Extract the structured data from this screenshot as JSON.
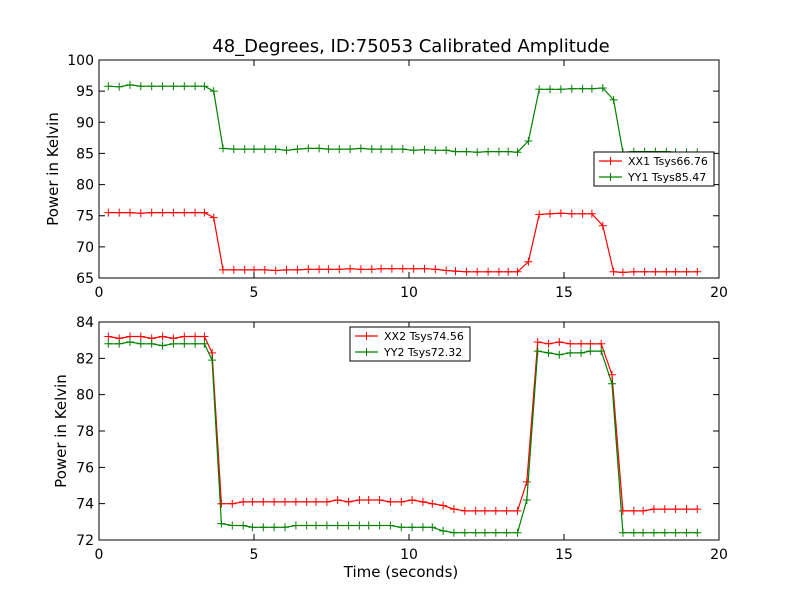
{
  "chart_data": [
    {
      "type": "line",
      "title": "48_Degrees, ID:75053 Calibrated Amplitude",
      "xlabel": "",
      "ylabel": "Power in Kelvin",
      "xlim": [
        0,
        20
      ],
      "ylim": [
        65,
        100
      ],
      "xticks": [
        0,
        5,
        10,
        15,
        20
      ],
      "yticks": [
        65,
        70,
        75,
        80,
        85,
        90,
        95,
        100
      ],
      "legend_position": "right",
      "grid": false,
      "series": [
        {
          "name": "XX1 Tsys66.76",
          "color": "#ff0000",
          "x": [
            0.3,
            0.65,
            1.0,
            1.35,
            1.7,
            2.05,
            2.4,
            2.75,
            3.1,
            3.4,
            3.7,
            4.0,
            4.35,
            4.7,
            5.0,
            5.35,
            5.7,
            6.05,
            6.4,
            6.75,
            7.1,
            7.4,
            7.75,
            8.1,
            8.45,
            8.8,
            9.1,
            9.45,
            9.8,
            10.15,
            10.5,
            10.85,
            11.2,
            11.5,
            11.85,
            12.2,
            12.55,
            12.9,
            13.2,
            13.5,
            13.85,
            14.2,
            14.55,
            14.9,
            15.25,
            15.6,
            15.9,
            16.25,
            16.6,
            16.9,
            17.25,
            17.6,
            17.95,
            18.3,
            18.6,
            18.95,
            19.3
          ],
          "y": [
            75.5,
            75.5,
            75.5,
            75.4,
            75.5,
            75.5,
            75.5,
            75.5,
            75.5,
            75.5,
            74.7,
            66.3,
            66.3,
            66.3,
            66.3,
            66.3,
            66.2,
            66.3,
            66.3,
            66.4,
            66.4,
            66.4,
            66.4,
            66.5,
            66.4,
            66.4,
            66.5,
            66.5,
            66.5,
            66.5,
            66.5,
            66.4,
            66.2,
            66.1,
            66.0,
            66.0,
            66.0,
            66.0,
            66.0,
            66.0,
            67.6,
            75.2,
            75.3,
            75.4,
            75.3,
            75.3,
            75.3,
            73.4,
            66.0,
            65.9,
            66.0,
            66.0,
            66.0,
            66.0,
            66.0,
            66.0,
            66.0
          ]
        },
        {
          "name": "YY1 Tsys85.47",
          "color": "#008000",
          "x": [
            0.3,
            0.65,
            1.0,
            1.35,
            1.7,
            2.05,
            2.4,
            2.75,
            3.1,
            3.4,
            3.7,
            4.0,
            4.35,
            4.7,
            5.0,
            5.35,
            5.7,
            6.05,
            6.4,
            6.75,
            7.1,
            7.4,
            7.75,
            8.1,
            8.45,
            8.8,
            9.1,
            9.45,
            9.8,
            10.15,
            10.5,
            10.85,
            11.2,
            11.5,
            11.85,
            12.2,
            12.55,
            12.9,
            13.2,
            13.5,
            13.85,
            14.2,
            14.55,
            14.9,
            15.25,
            15.6,
            15.9,
            16.25,
            16.6,
            16.9,
            17.25,
            17.6,
            17.95,
            18.3,
            18.6,
            18.95,
            19.3
          ],
          "y": [
            95.8,
            95.7,
            96.0,
            95.8,
            95.8,
            95.8,
            95.8,
            95.8,
            95.8,
            95.8,
            95.0,
            85.8,
            85.7,
            85.7,
            85.7,
            85.7,
            85.7,
            85.5,
            85.7,
            85.8,
            85.8,
            85.7,
            85.7,
            85.7,
            85.8,
            85.7,
            85.7,
            85.7,
            85.7,
            85.5,
            85.6,
            85.5,
            85.5,
            85.3,
            85.3,
            85.2,
            85.3,
            85.3,
            85.3,
            85.2,
            87.0,
            95.3,
            95.3,
            95.3,
            95.4,
            95.4,
            95.4,
            95.5,
            93.6,
            85.2,
            85.3,
            85.3,
            85.3,
            85.3,
            85.2,
            85.2,
            85.2
          ]
        }
      ]
    },
    {
      "type": "line",
      "title": "",
      "xlabel": "Time (seconds)",
      "ylabel": "Power in Kelvin",
      "xlim": [
        0,
        20
      ],
      "ylim": [
        72,
        84
      ],
      "xticks": [
        0,
        5,
        10,
        15,
        20
      ],
      "yticks": [
        72,
        74,
        76,
        78,
        80,
        82,
        84
      ],
      "legend_position": "top-center",
      "grid": false,
      "series": [
        {
          "name": "XX2 Tsys74.56",
          "color": "#ff0000",
          "x": [
            0.3,
            0.65,
            1.0,
            1.35,
            1.7,
            2.05,
            2.4,
            2.75,
            3.1,
            3.4,
            3.65,
            3.95,
            4.3,
            4.65,
            4.95,
            5.3,
            5.65,
            6.0,
            6.35,
            6.7,
            7.0,
            7.35,
            7.7,
            8.05,
            8.4,
            8.7,
            9.05,
            9.4,
            9.75,
            10.1,
            10.45,
            10.75,
            11.1,
            11.45,
            11.8,
            12.15,
            12.45,
            12.8,
            13.15,
            13.5,
            13.8,
            14.15,
            14.5,
            14.85,
            15.2,
            15.55,
            15.85,
            16.2,
            16.55,
            16.9,
            17.25,
            17.55,
            17.9,
            18.25,
            18.6,
            18.95,
            19.3
          ],
          "y": [
            83.2,
            83.1,
            83.2,
            83.2,
            83.1,
            83.2,
            83.1,
            83.2,
            83.2,
            83.2,
            82.3,
            74.0,
            74.0,
            74.1,
            74.1,
            74.1,
            74.1,
            74.1,
            74.1,
            74.1,
            74.1,
            74.1,
            74.2,
            74.1,
            74.2,
            74.2,
            74.2,
            74.1,
            74.1,
            74.2,
            74.1,
            74.0,
            73.9,
            73.7,
            73.6,
            73.6,
            73.6,
            73.6,
            73.6,
            73.6,
            75.2,
            82.9,
            82.8,
            82.9,
            82.8,
            82.8,
            82.8,
            82.8,
            81.1,
            73.6,
            73.6,
            73.6,
            73.7,
            73.7,
            73.7,
            73.7,
            73.7
          ]
        },
        {
          "name": "YY2 Tsys72.32",
          "color": "#008000",
          "x": [
            0.3,
            0.65,
            1.0,
            1.35,
            1.7,
            2.05,
            2.4,
            2.75,
            3.1,
            3.4,
            3.65,
            3.95,
            4.3,
            4.65,
            4.95,
            5.3,
            5.65,
            6.0,
            6.35,
            6.7,
            7.0,
            7.35,
            7.7,
            8.05,
            8.4,
            8.7,
            9.05,
            9.4,
            9.75,
            10.1,
            10.45,
            10.75,
            11.1,
            11.45,
            11.8,
            12.15,
            12.45,
            12.8,
            13.15,
            13.5,
            13.8,
            14.15,
            14.5,
            14.85,
            15.2,
            15.55,
            15.85,
            16.2,
            16.55,
            16.9,
            17.25,
            17.55,
            17.9,
            18.25,
            18.6,
            18.95,
            19.3
          ],
          "y": [
            82.8,
            82.8,
            82.9,
            82.8,
            82.8,
            82.7,
            82.8,
            82.8,
            82.8,
            82.8,
            81.9,
            72.9,
            72.8,
            72.8,
            72.7,
            72.7,
            72.7,
            72.7,
            72.8,
            72.8,
            72.8,
            72.8,
            72.8,
            72.8,
            72.8,
            72.8,
            72.8,
            72.8,
            72.7,
            72.7,
            72.7,
            72.7,
            72.5,
            72.4,
            72.4,
            72.4,
            72.4,
            72.4,
            72.4,
            72.4,
            74.2,
            82.4,
            82.3,
            82.2,
            82.3,
            82.3,
            82.4,
            82.4,
            80.6,
            72.4,
            72.4,
            72.4,
            72.4,
            72.4,
            72.4,
            72.4,
            72.4
          ]
        }
      ]
    }
  ]
}
